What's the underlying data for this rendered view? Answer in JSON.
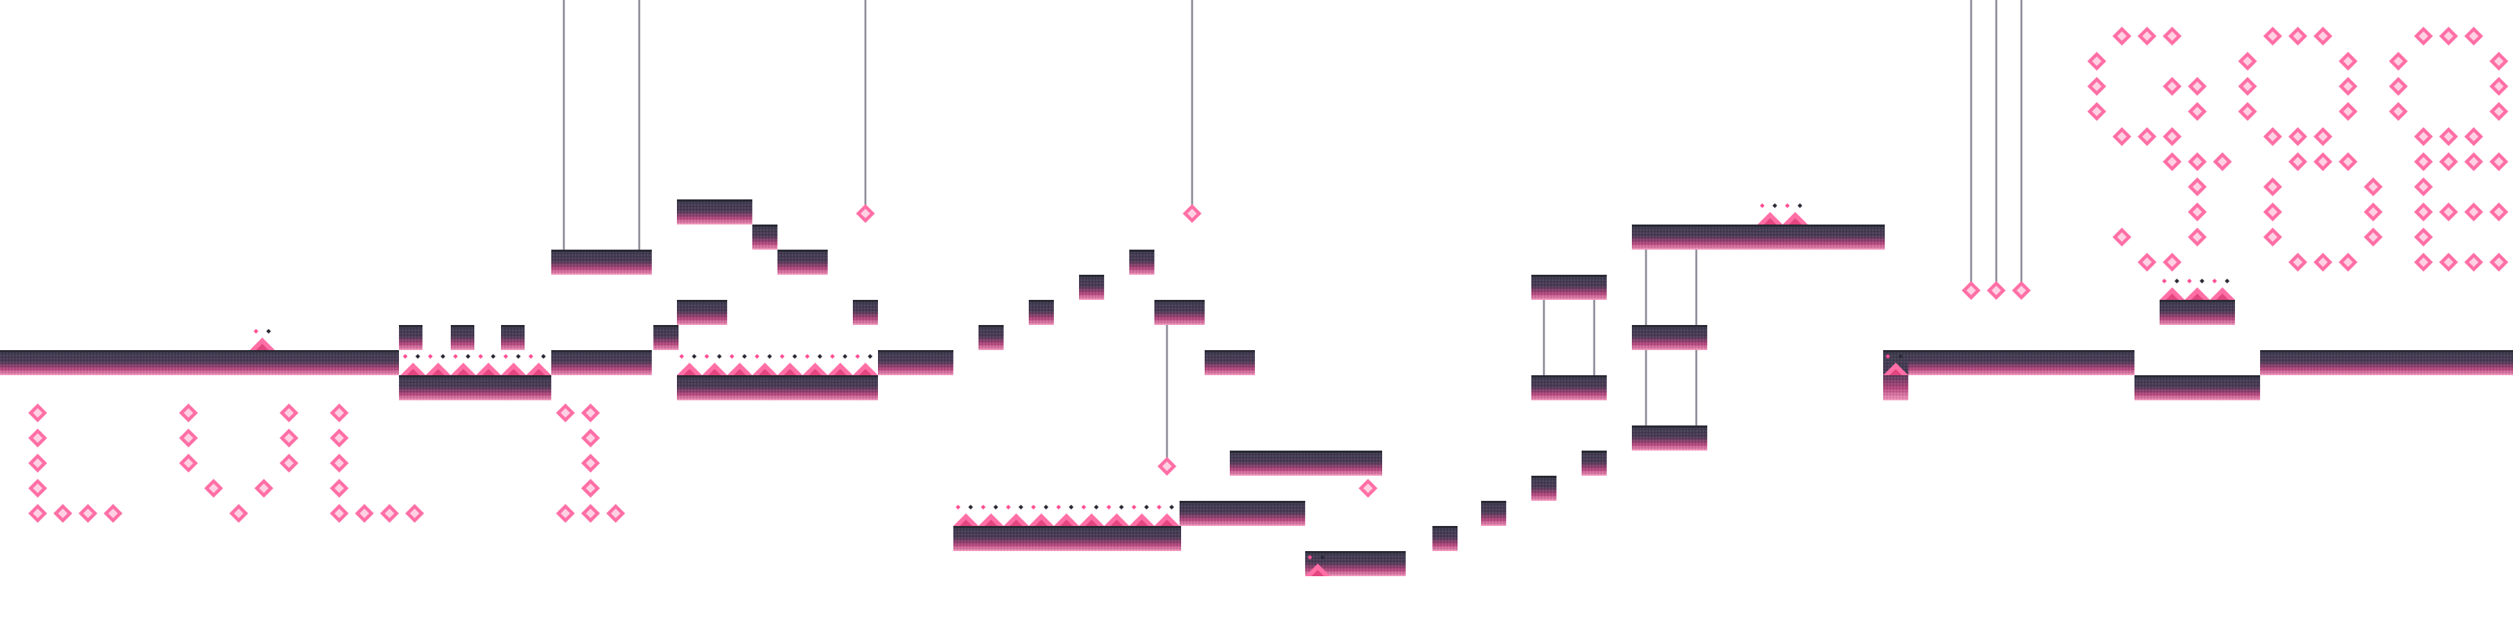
{
  "level_label": "LVL 1",
  "end_message": "GOOD JOB!",
  "palette": {
    "platform_top": "#3d3d4f",
    "platform_grad_mid": "#6a3a5a",
    "platform_bottom": "#f07aa8",
    "platform_edge": "#2a2a36",
    "spike": "#ff6fa6",
    "spike_dark": "#e2457f",
    "gem": "#ff6fa6",
    "gem_inner": "#ffd1e3",
    "rope": "#8e8e9a",
    "dot_dark": "#2a2a36",
    "dot_pink": "#ff4f93"
  },
  "icons": {
    "platform": "platform-block",
    "spike": "spike-icon",
    "gem": "diamond-gem-icon",
    "rope": "hanging-rope",
    "switch_dots": "switch-dots-icon"
  }
}
